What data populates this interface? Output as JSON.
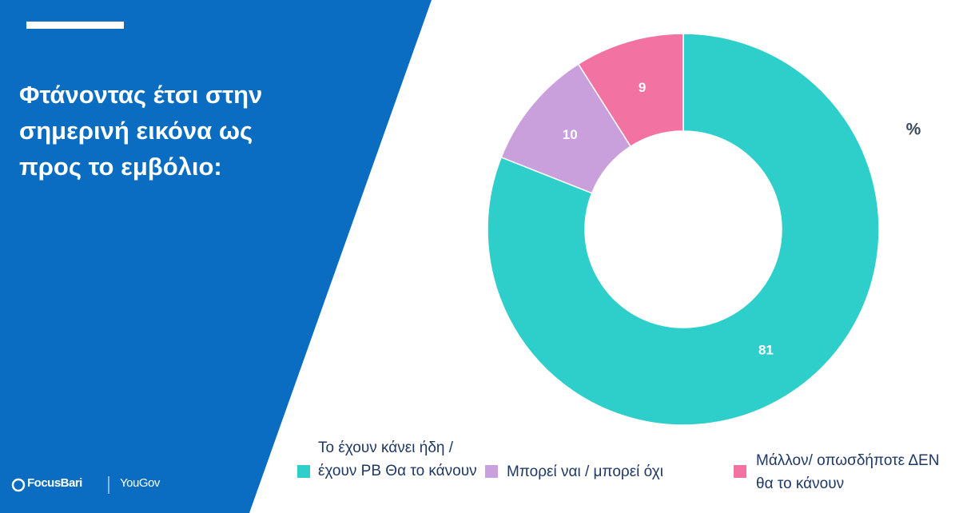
{
  "chart_data": {
    "type": "pie",
    "title": "Φτάνοντας έτσι στην σημερινή εικόνα ως προς το εμβόλιο:",
    "unit_label": "%",
    "categories": [
      "Το έχουν κάνει ήδη / έχουν PB Θα το κάνουν",
      "Μπορεί ναι / μπορεί όχι",
      "Μάλλον/ οπωσδήποτε ΔΕΝ θα το κάνουν"
    ],
    "values": [
      81,
      10,
      9
    ],
    "colors": [
      "#2ecfcb",
      "#c9a0dc",
      "#f272a2"
    ],
    "donut": true
  },
  "footer": {
    "logos": [
      "FocusBari",
      "YouGov"
    ]
  }
}
